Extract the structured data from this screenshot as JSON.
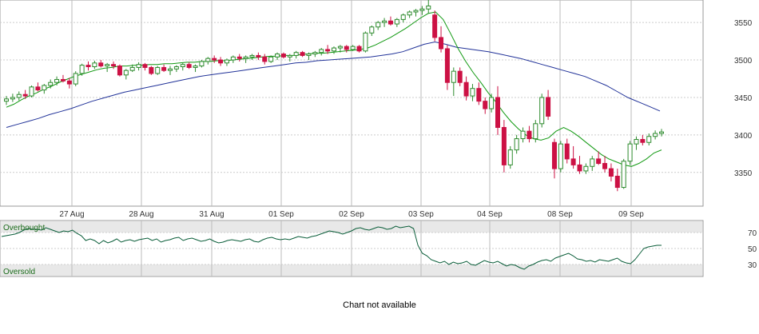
{
  "chart_data": [
    {
      "type": "candlestick",
      "name_note": "",
      "x": [
        "27 Aug",
        "28 Aug",
        "31 Aug",
        "01 Sep",
        "02 Sep",
        "03 Sep",
        "04 Sep",
        "08 Sep",
        "09 Sep"
      ],
      "ylim": [
        3305,
        3580
      ],
      "yticks": [
        3350,
        3400,
        3450,
        3500,
        3550
      ],
      "grid": true,
      "candles": [
        [
          3445,
          3452,
          3440,
          3448
        ],
        [
          3448,
          3455,
          3444,
          3450
        ],
        [
          3450,
          3458,
          3446,
          3454
        ],
        [
          3454,
          3460,
          3448,
          3452
        ],
        [
          3452,
          3466,
          3450,
          3464
        ],
        [
          3464,
          3470,
          3458,
          3460
        ],
        [
          3460,
          3468,
          3455,
          3466
        ],
        [
          3466,
          3474,
          3462,
          3470
        ],
        [
          3470,
          3478,
          3466,
          3474
        ],
        [
          3474,
          3480,
          3470,
          3472
        ],
        [
          3472,
          3476,
          3462,
          3468
        ],
        [
          3468,
          3485,
          3465,
          3482
        ],
        [
          3482,
          3495,
          3479,
          3493
        ],
        [
          3493,
          3498,
          3486,
          3491
        ],
        [
          3491,
          3499,
          3488,
          3496
        ],
        [
          3496,
          3500,
          3490,
          3492
        ],
        [
          3492,
          3496,
          3484,
          3494
        ],
        [
          3494,
          3498,
          3488,
          3492
        ],
        [
          3492,
          3494,
          3478,
          3480
        ],
        [
          3480,
          3488,
          3474,
          3486
        ],
        [
          3486,
          3494,
          3484,
          3490
        ],
        [
          3490,
          3497,
          3486,
          3494
        ],
        [
          3494,
          3496,
          3486,
          3490
        ],
        [
          3490,
          3492,
          3480,
          3482
        ],
        [
          3482,
          3492,
          3480,
          3490
        ],
        [
          3490,
          3494,
          3484,
          3486
        ],
        [
          3486,
          3492,
          3480,
          3488
        ],
        [
          3488,
          3493,
          3484,
          3491
        ],
        [
          3491,
          3496,
          3486,
          3494
        ],
        [
          3494,
          3497,
          3488,
          3490
        ],
        [
          3490,
          3494,
          3484,
          3492
        ],
        [
          3492,
          3500,
          3490,
          3498
        ],
        [
          3498,
          3504,
          3494,
          3502
        ],
        [
          3502,
          3506,
          3496,
          3500
        ],
        [
          3500,
          3504,
          3492,
          3496
        ],
        [
          3496,
          3502,
          3492,
          3500
        ],
        [
          3500,
          3506,
          3496,
          3504
        ],
        [
          3504,
          3508,
          3498,
          3502
        ],
        [
          3502,
          3506,
          3496,
          3504
        ],
        [
          3504,
          3508,
          3500,
          3506
        ],
        [
          3506,
          3510,
          3500,
          3504
        ],
        [
          3504,
          3508,
          3494,
          3498
        ],
        [
          3498,
          3506,
          3496,
          3504
        ],
        [
          3504,
          3510,
          3500,
          3508
        ],
        [
          3508,
          3510,
          3502,
          3504
        ],
        [
          3504,
          3508,
          3498,
          3506
        ],
        [
          3506,
          3512,
          3502,
          3510
        ],
        [
          3510,
          3512,
          3504,
          3506
        ],
        [
          3506,
          3510,
          3500,
          3508
        ],
        [
          3508,
          3512,
          3504,
          3510
        ],
        [
          3510,
          3516,
          3506,
          3514
        ],
        [
          3514,
          3520,
          3508,
          3512
        ],
        [
          3512,
          3518,
          3508,
          3516
        ],
        [
          3516,
          3520,
          3510,
          3518
        ],
        [
          3518,
          3520,
          3510,
          3514
        ],
        [
          3514,
          3520,
          3512,
          3518
        ],
        [
          3518,
          3520,
          3510,
          3512
        ],
        [
          3512,
          3538,
          3510,
          3536
        ],
        [
          3536,
          3546,
          3532,
          3544
        ],
        [
          3544,
          3552,
          3540,
          3550
        ],
        [
          3550,
          3556,
          3544,
          3552
        ],
        [
          3552,
          3558,
          3546,
          3548
        ],
        [
          3548,
          3556,
          3544,
          3554
        ],
        [
          3554,
          3562,
          3550,
          3560
        ],
        [
          3560,
          3566,
          3556,
          3564
        ],
        [
          3564,
          3568,
          3558,
          3566
        ],
        [
          3566,
          3572,
          3560,
          3568
        ],
        [
          3568,
          3580,
          3562,
          3572
        ],
        [
          3560,
          3566,
          3525,
          3530
        ],
        [
          3530,
          3545,
          3510,
          3515
        ],
        [
          3515,
          3520,
          3460,
          3470
        ],
        [
          3470,
          3490,
          3452,
          3485
        ],
        [
          3485,
          3490,
          3465,
          3470
        ],
        [
          3470,
          3478,
          3446,
          3452
        ],
        [
          3452,
          3468,
          3445,
          3462
        ],
        [
          3462,
          3470,
          3440,
          3445
        ],
        [
          3445,
          3450,
          3428,
          3435
        ],
        [
          3435,
          3455,
          3430,
          3450
        ],
        [
          3450,
          3465,
          3400,
          3410
        ],
        [
          3410,
          3420,
          3350,
          3360
        ],
        [
          3360,
          3385,
          3355,
          3380
        ],
        [
          3380,
          3400,
          3375,
          3395
        ],
        [
          3395,
          3410,
          3390,
          3405
        ],
        [
          3405,
          3412,
          3390,
          3395
        ],
        [
          3395,
          3420,
          3390,
          3415
        ],
        [
          3415,
          3455,
          3410,
          3450
        ],
        [
          3450,
          3460,
          3420,
          3425
        ],
        [
          3390,
          3395,
          3342,
          3355
        ],
        [
          3355,
          3392,
          3350,
          3388
        ],
        [
          3388,
          3395,
          3362,
          3368
        ],
        [
          3368,
          3385,
          3355,
          3360
        ],
        [
          3360,
          3372,
          3348,
          3352
        ],
        [
          3352,
          3362,
          3348,
          3358
        ],
        [
          3358,
          3372,
          3352,
          3368
        ],
        [
          3368,
          3378,
          3360,
          3362
        ],
        [
          3362,
          3372,
          3350,
          3355
        ],
        [
          3355,
          3362,
          3338,
          3345
        ],
        [
          3345,
          3355,
          3325,
          3330
        ],
        [
          3330,
          3368,
          3328,
          3365
        ],
        [
          3365,
          3392,
          3360,
          3388
        ],
        [
          3388,
          3398,
          3380,
          3394
        ],
        [
          3394,
          3400,
          3386,
          3390
        ],
        [
          3390,
          3402,
          3386,
          3398
        ],
        [
          3398,
          3406,
          3394,
          3402
        ],
        [
          3402,
          3408,
          3398,
          3404
        ]
      ],
      "candle_colors": {
        "up": "#2e8b2e",
        "down": "#cc1144"
      },
      "ma_short": {
        "color": "#119911",
        "values": [
          3437,
          3441,
          3447,
          3452,
          3456,
          3461,
          3465,
          3470,
          3474,
          3478,
          3481,
          3484,
          3487,
          3489,
          3490,
          3492,
          3492,
          3493,
          3493,
          3494,
          3494,
          3495,
          3495,
          3496,
          3497,
          3497,
          3498,
          3498,
          3499,
          3499,
          3500,
          3501,
          3502,
          3503,
          3504,
          3505,
          3505,
          3506,
          3506,
          3507,
          3508,
          3509,
          3509,
          3510,
          3511,
          3512,
          3513,
          3514,
          3516,
          3520,
          3525,
          3530,
          3536,
          3542,
          3549,
          3556,
          3562,
          3564,
          3554,
          3535,
          3515,
          3498,
          3483,
          3470,
          3456,
          3444,
          3430,
          3418,
          3408,
          3400,
          3395,
          3393,
          3396,
          3405,
          3410,
          3405,
          3398,
          3390,
          3382,
          3374,
          3368,
          3364,
          3360,
          3358,
          3362,
          3368,
          3376,
          3380
        ]
      },
      "ma_long": {
        "color": "#223399",
        "values": [
          3410,
          3414,
          3418,
          3422,
          3427,
          3431,
          3435,
          3440,
          3445,
          3449,
          3453,
          3457,
          3460,
          3463,
          3466,
          3469,
          3472,
          3475,
          3478,
          3480,
          3482,
          3484,
          3486,
          3488,
          3490,
          3492,
          3494,
          3496,
          3497,
          3499,
          3500,
          3501,
          3502,
          3503,
          3504,
          3506,
          3508,
          3511,
          3516,
          3521,
          3524,
          3521,
          3517,
          3515,
          3513,
          3511,
          3508,
          3505,
          3502,
          3498,
          3494,
          3490,
          3486,
          3482,
          3478,
          3472,
          3466,
          3458,
          3450,
          3444,
          3438,
          3432
        ]
      },
      "ma_long_x": "sampled every ~14px",
      "ma_short_x": "sampled every ~10px"
    },
    {
      "type": "line",
      "ylim": [
        15,
        85
      ],
      "yticks": [
        30,
        50,
        70
      ],
      "zones": {
        "upper_label": "Overbought",
        "lower_label": "Oversold",
        "upper": 70,
        "lower": 30
      },
      "line_color": "#0b5e3a",
      "x_sampled": true,
      "values": [
        65,
        66,
        67,
        68,
        70,
        73,
        75,
        74,
        74,
        73,
        76,
        74,
        72,
        70,
        72,
        71,
        73,
        69,
        66,
        60,
        62,
        60,
        56,
        60,
        57,
        59,
        62,
        58,
        60,
        61,
        59,
        61,
        62,
        63,
        60,
        62,
        58,
        60,
        61,
        63,
        64,
        60,
        62,
        63,
        61,
        59,
        60,
        62,
        59,
        57,
        58,
        60,
        61,
        60,
        59,
        61,
        62,
        59,
        58,
        61,
        63,
        64,
        62,
        61,
        62,
        61,
        63,
        65,
        64,
        63,
        65,
        66,
        68,
        70,
        72,
        71,
        70,
        68,
        70,
        72,
        75,
        76,
        74,
        73,
        75,
        77,
        76,
        74,
        75,
        78,
        76,
        77,
        78,
        75,
        54,
        44,
        41,
        36,
        34,
        32,
        34,
        30,
        33,
        31,
        32,
        34,
        30,
        29,
        32,
        35,
        33,
        32,
        34,
        31,
        28,
        30,
        29,
        26,
        24,
        28,
        30,
        33,
        35,
        36,
        34,
        38,
        40,
        42,
        44,
        41,
        37,
        36,
        34,
        35,
        33,
        36,
        35,
        34,
        36,
        38,
        34,
        32,
        31,
        36,
        43,
        50,
        52,
        53,
        54,
        54
      ],
      "label": ""
    }
  ],
  "footer": {
    "message": "Chart not available"
  }
}
